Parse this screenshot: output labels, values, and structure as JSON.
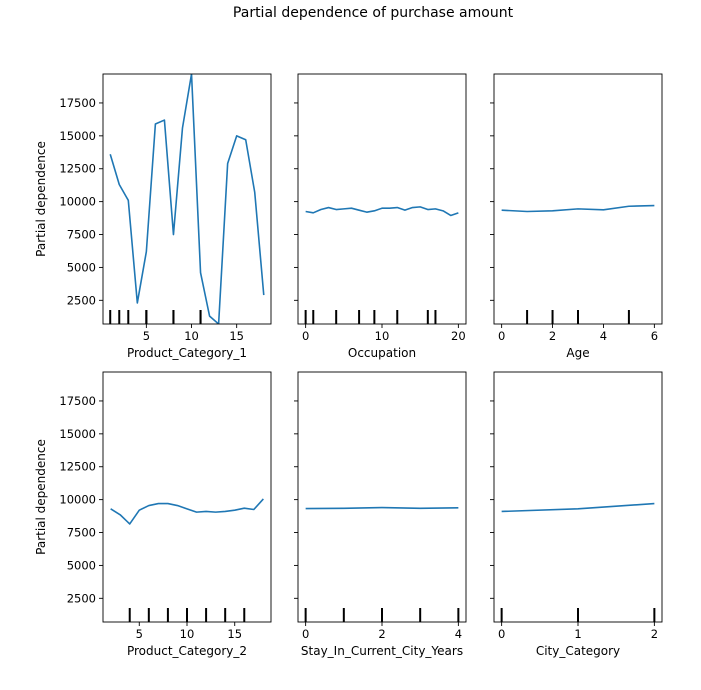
{
  "figure": {
    "title": "Partial dependence of purchase amount",
    "line_color": "#1f77b4"
  },
  "chart_data": [
    {
      "type": "line",
      "xlabel": "Product_Category_1",
      "ylabel": "Partial dependence",
      "xlim": [
        0.2,
        18.8
      ],
      "ylim": [
        700,
        19700
      ],
      "xticks": [
        5,
        10,
        15
      ],
      "yticks": [
        2500,
        5000,
        7500,
        10000,
        12500,
        15000,
        17500
      ],
      "show_yticklabels": true,
      "x": [
        1,
        2,
        3,
        4,
        5,
        6,
        7,
        8,
        9,
        10,
        11,
        12,
        13,
        14,
        15,
        16,
        17,
        18
      ],
      "y": [
        13600,
        11300,
        10100,
        2300,
        6200,
        15900,
        16200,
        7500,
        15600,
        19700,
        4600,
        1300,
        700,
        12900,
        15000,
        14700,
        10700,
        2900
      ],
      "deciles": [
        1,
        2,
        3,
        5,
        5,
        8,
        8,
        11,
        11
      ]
    },
    {
      "type": "line",
      "xlabel": "Occupation",
      "ylabel": "",
      "xlim": [
        -1,
        21
      ],
      "ylim": [
        700,
        19700
      ],
      "xticks": [
        0,
        10,
        20
      ],
      "yticks": [
        2500,
        5000,
        7500,
        10000,
        12500,
        15000,
        17500
      ],
      "show_yticklabels": false,
      "x": [
        0,
        1,
        2,
        3,
        4,
        5,
        6,
        7,
        8,
        9,
        10,
        11,
        12,
        13,
        14,
        15,
        16,
        17,
        18,
        19,
        20
      ],
      "y": [
        9250,
        9150,
        9400,
        9550,
        9400,
        9450,
        9500,
        9350,
        9200,
        9300,
        9500,
        9500,
        9550,
        9350,
        9550,
        9600,
        9400,
        9450,
        9300,
        8950,
        9150
      ],
      "deciles": [
        0,
        1,
        4,
        7,
        9,
        12,
        16,
        17
      ]
    },
    {
      "type": "line",
      "xlabel": "Age",
      "ylabel": "",
      "xlim": [
        -0.3,
        6.3
      ],
      "ylim": [
        700,
        19700
      ],
      "xticks": [
        0,
        2,
        4,
        6
      ],
      "yticks": [
        2500,
        5000,
        7500,
        10000,
        12500,
        15000,
        17500
      ],
      "show_yticklabels": false,
      "x": [
        0,
        1,
        2,
        3,
        4,
        5,
        6
      ],
      "y": [
        9350,
        9250,
        9300,
        9450,
        9380,
        9650,
        9700
      ],
      "deciles": [
        1,
        2,
        3,
        5
      ]
    },
    {
      "type": "line",
      "xlabel": "Product_Category_2",
      "ylabel": "Partial dependence",
      "xlim": [
        1.2,
        18.8
      ],
      "ylim": [
        700,
        19700
      ],
      "xticks": [
        5,
        10,
        15
      ],
      "yticks": [
        2500,
        5000,
        7500,
        10000,
        12500,
        15000,
        17500
      ],
      "show_yticklabels": true,
      "x": [
        2,
        3,
        4,
        5,
        6,
        7,
        8,
        9,
        10,
        11,
        12,
        13,
        14,
        15,
        16,
        17,
        18
      ],
      "y": [
        9300,
        8850,
        8150,
        9200,
        9550,
        9700,
        9700,
        9550,
        9300,
        9050,
        9100,
        9050,
        9100,
        9200,
        9350,
        9250,
        10050
      ],
      "deciles": [
        4,
        6,
        8,
        10,
        12,
        14,
        16
      ]
    },
    {
      "type": "line",
      "xlabel": "Stay_In_Current_City_Years",
      "ylabel": "",
      "xlim": [
        -0.2,
        4.2
      ],
      "ylim": [
        700,
        19700
      ],
      "xticks": [
        0,
        2,
        4
      ],
      "yticks": [
        2500,
        5000,
        7500,
        10000,
        12500,
        15000,
        17500
      ],
      "show_yticklabels": false,
      "x": [
        0,
        1,
        2,
        3,
        4
      ],
      "y": [
        9320,
        9340,
        9400,
        9340,
        9380
      ],
      "deciles": [
        0,
        1,
        2,
        3,
        4
      ]
    },
    {
      "type": "line",
      "xlabel": "City_Category",
      "ylabel": "",
      "xlim": [
        -0.1,
        2.1
      ],
      "ylim": [
        700,
        19700
      ],
      "xticks": [
        0,
        1,
        2
      ],
      "yticks": [
        2500,
        5000,
        7500,
        10000,
        12500,
        15000,
        17500
      ],
      "show_yticklabels": false,
      "x": [
        0,
        1,
        2
      ],
      "y": [
        9100,
        9300,
        9700
      ],
      "deciles": [
        0,
        1,
        2
      ]
    }
  ]
}
